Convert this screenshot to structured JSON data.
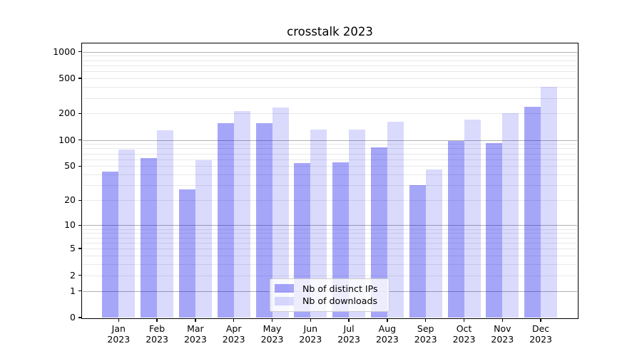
{
  "chart_data": {
    "type": "bar",
    "title": "crosstalk 2023",
    "x_categories": [
      [
        "Jan",
        "2023"
      ],
      [
        "Feb",
        "2023"
      ],
      [
        "Mar",
        "2023"
      ],
      [
        "Apr",
        "2023"
      ],
      [
        "May",
        "2023"
      ],
      [
        "Jun",
        "2023"
      ],
      [
        "Jul",
        "2023"
      ],
      [
        "Aug",
        "2023"
      ],
      [
        "Sep",
        "2023"
      ],
      [
        "Oct",
        "2023"
      ],
      [
        "Nov",
        "2023"
      ],
      [
        "Dec",
        "2023"
      ]
    ],
    "series": [
      {
        "name": "Nb of distinct IPs",
        "key": "ips",
        "color": "#0000ee",
        "alpha": 0.35,
        "values": [
          43,
          62,
          27,
          155,
          155,
          54,
          55,
          82,
          30,
          98,
          92,
          238
        ]
      },
      {
        "name": "Nb of downloads",
        "key": "downloads",
        "color": "#0000ee",
        "alpha": 0.145,
        "values": [
          78,
          129,
          59,
          214,
          234,
          130,
          132,
          160,
          46,
          170,
          202,
          403
        ]
      }
    ],
    "yscale": "log1p",
    "ylim": [
      0,
      1220
    ],
    "ytick_values": [
      0,
      1,
      2,
      5,
      10,
      20,
      50,
      100,
      200,
      500,
      1000
    ],
    "grid": {
      "orientation": "horizontal",
      "major_at": [
        1,
        10,
        100,
        1000
      ],
      "minor_decades": [
        1,
        10,
        100
      ],
      "major_color": "#b0b0b0",
      "minor_color": "#e8e8e8"
    },
    "legend_position": "lower center"
  }
}
